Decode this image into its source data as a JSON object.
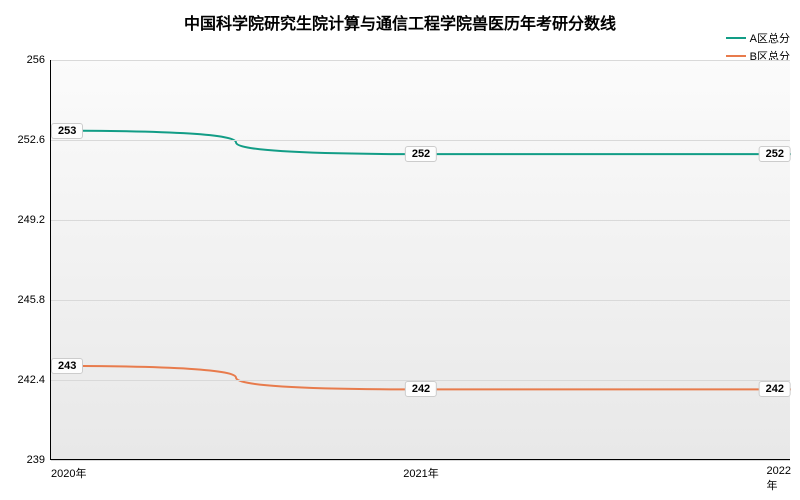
{
  "chart": {
    "type": "line",
    "title": "中国科学院研究生院计算与通信工程学院兽医历年考研分数线",
    "title_fontsize": 16,
    "title_fontweight": "bold",
    "background_color": "#ffffff",
    "plot_bg_gradient_top": "#fbfbfb",
    "plot_bg_gradient_bottom": "#e8e8e8",
    "grid_color": "#d9d9d9",
    "axis_color": "#000000",
    "label_fontsize": 11,
    "x_categories": [
      "2020年",
      "2021年",
      "2022年"
    ],
    "y_min": 239,
    "y_max": 256,
    "y_ticks": [
      239,
      242.4,
      245.8,
      249.2,
      252.6,
      256
    ],
    "series": [
      {
        "name": "A区总分",
        "color": "#129d86",
        "line_width": 2,
        "values": [
          253,
          252,
          252
        ]
      },
      {
        "name": "B区总分",
        "color": "#e87b4c",
        "line_width": 2,
        "values": [
          243,
          242,
          242
        ]
      }
    ]
  }
}
